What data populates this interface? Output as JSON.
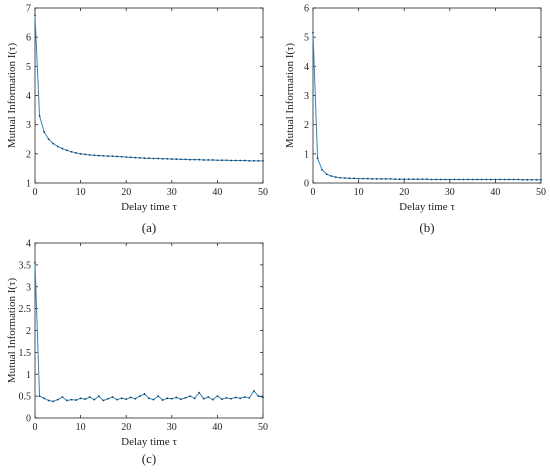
{
  "chart_data": [
    {
      "type": "line",
      "caption": "(a)",
      "xlabel": "Delay time τ",
      "ylabel": "Mutual Information I(τ)",
      "xlim": [
        0,
        50
      ],
      "ylim": [
        1,
        7
      ],
      "xticks": [
        0,
        10,
        20,
        30,
        40,
        50
      ],
      "yticks": [
        1,
        2,
        3,
        4,
        5,
        6,
        7
      ],
      "grid": false,
      "series": [
        {
          "color": "#2e86c1",
          "x": [
            0,
            1,
            2,
            3,
            4,
            5,
            6,
            7,
            8,
            9,
            10,
            11,
            12,
            13,
            14,
            15,
            16,
            17,
            18,
            19,
            20,
            21,
            22,
            23,
            24,
            25,
            26,
            27,
            28,
            29,
            30,
            31,
            32,
            33,
            34,
            35,
            36,
            37,
            38,
            39,
            40,
            41,
            42,
            43,
            44,
            45,
            46,
            47,
            48,
            49,
            50
          ],
          "y": [
            6.75,
            3.3,
            2.75,
            2.5,
            2.35,
            2.25,
            2.18,
            2.12,
            2.07,
            2.03,
            2.0,
            1.98,
            1.96,
            1.95,
            1.94,
            1.93,
            1.92,
            1.92,
            1.91,
            1.9,
            1.89,
            1.88,
            1.87,
            1.86,
            1.85,
            1.85,
            1.84,
            1.84,
            1.83,
            1.83,
            1.82,
            1.82,
            1.81,
            1.81,
            1.8,
            1.8,
            1.8,
            1.79,
            1.79,
            1.79,
            1.78,
            1.78,
            1.78,
            1.77,
            1.77,
            1.77,
            1.77,
            1.76,
            1.76,
            1.76,
            1.76
          ]
        }
      ]
    },
    {
      "type": "line",
      "caption": "(b)",
      "xlabel": "Delay time τ",
      "ylabel": "Mutual Information I(τ)",
      "xlim": [
        0,
        50
      ],
      "ylim": [
        0,
        6
      ],
      "xticks": [
        0,
        10,
        20,
        30,
        40,
        50
      ],
      "yticks": [
        0,
        1,
        2,
        3,
        4,
        5,
        6
      ],
      "grid": false,
      "series": [
        {
          "color": "#2e86c1",
          "x": [
            0,
            1,
            2,
            3,
            4,
            5,
            6,
            7,
            8,
            9,
            10,
            11,
            12,
            13,
            14,
            15,
            16,
            17,
            18,
            19,
            20,
            21,
            22,
            23,
            24,
            25,
            26,
            27,
            28,
            29,
            30,
            31,
            32,
            33,
            34,
            35,
            36,
            37,
            38,
            39,
            40,
            41,
            42,
            43,
            44,
            45,
            46,
            47,
            48,
            49,
            50
          ],
          "y": [
            5.15,
            0.85,
            0.45,
            0.3,
            0.24,
            0.2,
            0.18,
            0.17,
            0.16,
            0.16,
            0.15,
            0.15,
            0.15,
            0.14,
            0.14,
            0.14,
            0.14,
            0.14,
            0.13,
            0.13,
            0.13,
            0.13,
            0.13,
            0.13,
            0.13,
            0.13,
            0.12,
            0.12,
            0.12,
            0.12,
            0.12,
            0.12,
            0.12,
            0.12,
            0.12,
            0.12,
            0.12,
            0.12,
            0.12,
            0.12,
            0.12,
            0.12,
            0.12,
            0.12,
            0.12,
            0.12,
            0.11,
            0.11,
            0.11,
            0.11,
            0.11
          ]
        }
      ]
    },
    {
      "type": "line",
      "caption": "(c)",
      "xlabel": "Delay time τ",
      "ylabel": "Mutual Information I(τ)",
      "xlim": [
        0,
        50
      ],
      "ylim": [
        0,
        4
      ],
      "xticks": [
        0,
        10,
        20,
        30,
        40,
        50
      ],
      "yticks": [
        0,
        0.5,
        1,
        1.5,
        2,
        2.5,
        3,
        3.5,
        4
      ],
      "grid": false,
      "series": [
        {
          "color": "#2e86c1",
          "x": [
            0,
            1,
            2,
            3,
            4,
            5,
            6,
            7,
            8,
            9,
            10,
            11,
            12,
            13,
            14,
            15,
            16,
            17,
            18,
            19,
            20,
            21,
            22,
            23,
            24,
            25,
            26,
            27,
            28,
            29,
            30,
            31,
            32,
            33,
            34,
            35,
            36,
            37,
            38,
            39,
            40,
            41,
            42,
            43,
            44,
            45,
            46,
            47,
            48,
            49,
            50
          ],
          "y": [
            3.55,
            0.5,
            0.45,
            0.4,
            0.38,
            0.42,
            0.48,
            0.4,
            0.42,
            0.41,
            0.45,
            0.43,
            0.48,
            0.42,
            0.5,
            0.4,
            0.44,
            0.48,
            0.42,
            0.45,
            0.43,
            0.47,
            0.44,
            0.5,
            0.55,
            0.45,
            0.42,
            0.5,
            0.41,
            0.45,
            0.44,
            0.47,
            0.43,
            0.46,
            0.5,
            0.45,
            0.58,
            0.44,
            0.48,
            0.42,
            0.5,
            0.43,
            0.46,
            0.44,
            0.47,
            0.45,
            0.48,
            0.46,
            0.62,
            0.5,
            0.47
          ]
        }
      ]
    }
  ]
}
